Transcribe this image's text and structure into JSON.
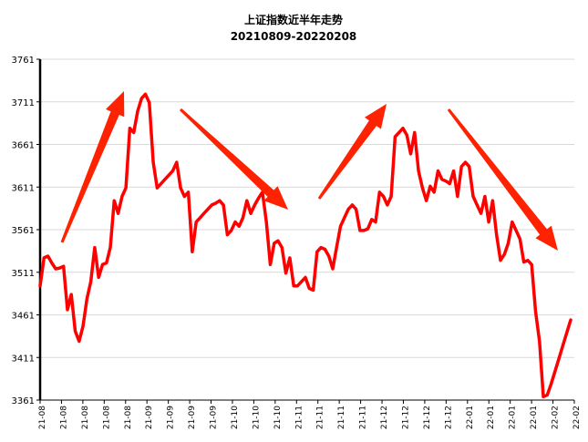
{
  "chart_data": {
    "type": "line",
    "title": "上证指数近半年走势",
    "subtitle": "20210809-20220208",
    "xlabel": "",
    "ylabel": "",
    "ylim": [
      3361,
      3761
    ],
    "yticks": [
      3361,
      3411,
      3461,
      3511,
      3561,
      3611,
      3661,
      3711,
      3761
    ],
    "grid": true,
    "x_tick_labels": [
      "21-08",
      "21-08",
      "21-08",
      "21-08",
      "21-08",
      "21-09",
      "21-09",
      "21-09",
      "21-09",
      "21-10",
      "21-10",
      "21-10",
      "21-11",
      "21-11",
      "21-11",
      "21-11",
      "21-12",
      "21-12",
      "21-12",
      "21-12",
      "22-01",
      "22-01",
      "22-01",
      "22-01",
      "22-02",
      "22-02"
    ],
    "series": [
      {
        "color": "#ff0000",
        "values": [
          3495,
          3528,
          3530,
          3522,
          3515,
          3516,
          3518,
          3467,
          3485,
          3442,
          3430,
          3448,
          3480,
          3500,
          3540,
          3505,
          3520,
          3522,
          3540,
          3595,
          3580,
          3600,
          3610,
          3680,
          3675,
          3700,
          3715,
          3720,
          3710,
          3640,
          3610,
          3615,
          3620,
          3625,
          3630,
          3640,
          3610,
          3600,
          3605,
          3535,
          3570,
          3575,
          3580,
          3585,
          3590,
          3592,
          3595,
          3590,
          3555,
          3560,
          3570,
          3565,
          3575,
          3595,
          3580,
          3590,
          3598,
          3605,
          3570,
          3520,
          3545,
          3548,
          3540,
          3510,
          3528,
          3495,
          3495,
          3500,
          3505,
          3492,
          3490,
          3535,
          3540,
          3538,
          3530,
          3515,
          3540,
          3565,
          3575,
          3585,
          3590,
          3585,
          3560,
          3560,
          3562,
          3573,
          3570,
          3605,
          3600,
          3590,
          3600,
          3670,
          3675,
          3680,
          3672,
          3650,
          3675,
          3630,
          3610,
          3595,
          3612,
          3605,
          3630,
          3620,
          3618,
          3615,
          3630,
          3600,
          3635,
          3640,
          3635,
          3600,
          3590,
          3580,
          3600,
          3570,
          3595,
          3555,
          3525,
          3532,
          3545,
          3570,
          3560,
          3550,
          3523,
          3525,
          3520,
          3465,
          3430,
          3365,
          3367,
          3380,
          3395,
          3410,
          3425,
          3440,
          3455
        ]
      }
    ],
    "annotations": [
      {
        "type": "arrow",
        "direction": "up",
        "color": "#ff2200"
      },
      {
        "type": "arrow",
        "direction": "down",
        "color": "#ff2200"
      },
      {
        "type": "arrow",
        "direction": "up",
        "color": "#ff2200"
      },
      {
        "type": "arrow",
        "direction": "down",
        "color": "#ff2200"
      }
    ]
  }
}
